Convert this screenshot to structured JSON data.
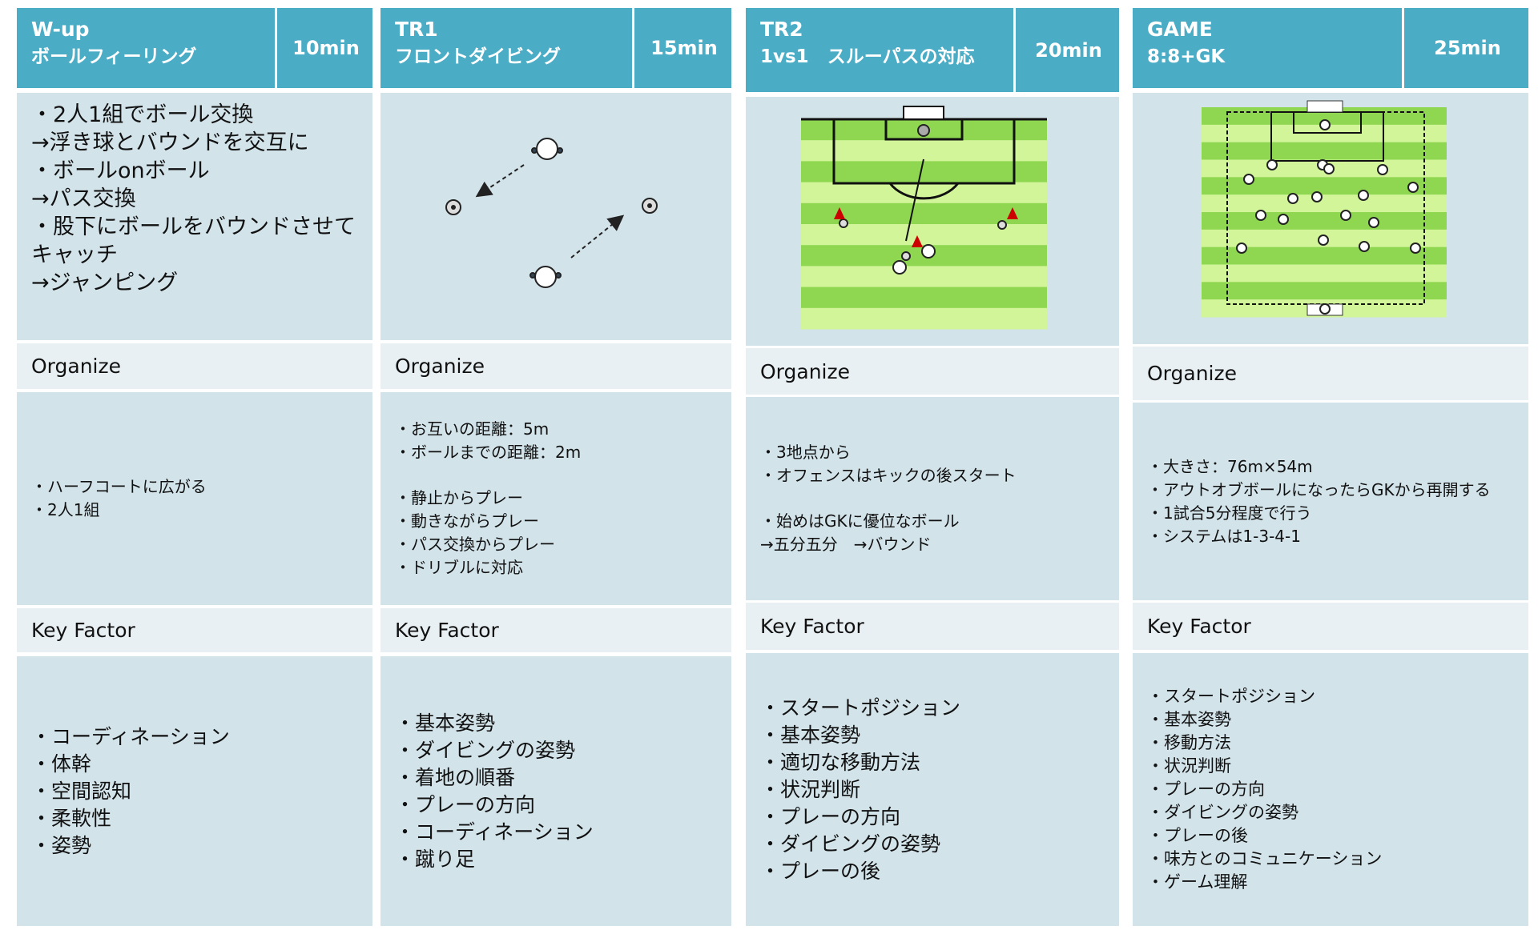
{
  "columns": [
    {
      "title": [
        "W-up",
        "ボールフィーリング"
      ],
      "duration": "10min",
      "intro": [
        "・2人1組でボール交換",
        "→浮き球とバウンドを交互に",
        "・ボールonボール",
        "→パス交換",
        "・股下にボールをバウンドさせて",
        "キャッチ",
        "→ジャンピング"
      ],
      "organize_label": "Organize",
      "organize": [
        [
          "・ハーフコートに広がる",
          "・2人1組"
        ]
      ],
      "key_factor_label": "Key Factor",
      "key_factors": [
        "・コーディネーション",
        "・体幹",
        "・空間認知",
        "・柔軟性",
        "・姿勢"
      ]
    },
    {
      "title": [
        "TR1",
        "フロントダイビング"
      ],
      "duration": "15min",
      "organize_label": "Organize",
      "organize": [
        [
          "・お互いの距離：5m",
          "・ボールまでの距離：2m"
        ],
        [
          "・静止からプレー",
          "・動きながらプレー",
          "・パス交換からプレー",
          "・ドリブルに対応"
        ]
      ],
      "key_factor_label": "Key Factor",
      "key_factors": [
        "・基本姿勢",
        "・ダイビングの姿勢",
        "・着地の順番",
        "・プレーの方向",
        "・コーディネーション",
        "・蹴り足"
      ]
    },
    {
      "title": [
        "TR2",
        "1vs1　スルーパスの対応"
      ],
      "duration": "20min",
      "organize_label": "Organize",
      "organize": [
        [
          "・3地点から",
          "・オフェンスはキックの後スタート"
        ],
        [
          "・始めはGKに優位なボール",
          "→五分五分　→バウンド"
        ]
      ],
      "key_factor_label": "Key Factor",
      "key_factors": [
        "・スタートポジション",
        "・基本姿勢",
        "・適切な移動方法",
        "・状況判断",
        "・プレーの方向",
        "・ダイビングの姿勢",
        "・プレーの後"
      ]
    },
    {
      "title": [
        "GAME",
        "8:8+GK"
      ],
      "duration": "25min",
      "organize_label": "Organize",
      "organize": [
        [
          "・大きさ：76m×54m",
          "・アウトオブボールになったらGKから再開する",
          "・1試合5分程度で行う",
          "・システムは1-3-4-1"
        ]
      ],
      "key_factor_label": "Key Factor",
      "key_factors": [
        "・スタートポジション",
        "・基本姿勢",
        "・移動方法",
        "・状況判断",
        "・プレーの方向",
        "・ダイビングの姿勢",
        "・プレーの後",
        "・味方とのコミュニケーション",
        "・ゲーム理解"
      ]
    }
  ]
}
